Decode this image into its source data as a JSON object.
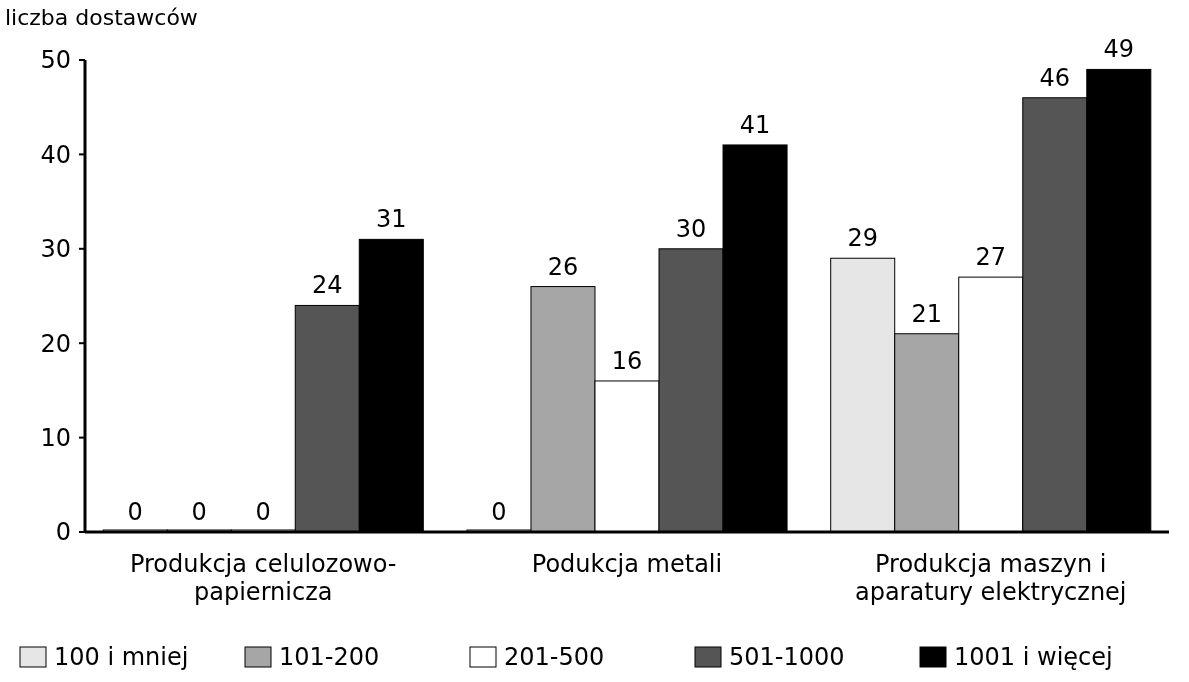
{
  "chart_data": {
    "type": "bar",
    "ylabel": "liczba dostawców",
    "categories": [
      "Produkcja celulozowo-papiernicza",
      "Podukcja metali",
      "Produkcja maszyn i aparatury elektrycznej"
    ],
    "series": [
      {
        "name": "100 i mniej",
        "color": "#e6e6e6",
        "values": [
          0,
          0,
          29
        ]
      },
      {
        "name": "101-200",
        "color": "#a6a6a6",
        "values": [
          0,
          26,
          21
        ]
      },
      {
        "name": "201-500",
        "color": "#ffffff",
        "values": [
          0,
          16,
          27
        ]
      },
      {
        "name": "501-1000",
        "color": "#555555",
        "values": [
          24,
          30,
          46
        ]
      },
      {
        "name": "1001 i więcej",
        "color": "#000000",
        "values": [
          31,
          41,
          49
        ]
      }
    ],
    "ylim": [
      0,
      50
    ],
    "yticks": [
      0,
      10,
      20,
      30,
      40,
      50
    ],
    "data_labels": true,
    "legend": "bottom",
    "grid": false
  }
}
